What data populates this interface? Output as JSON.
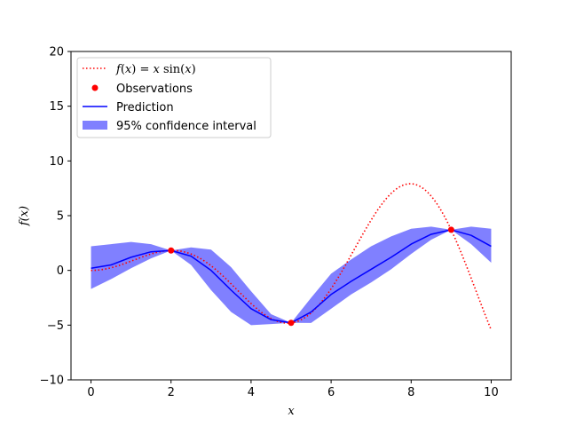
{
  "chart_data": {
    "type": "line",
    "xlabel": "x",
    "ylabel": "f(x)",
    "xlim": [
      -0.5,
      10.5
    ],
    "ylim": [
      -10,
      20
    ],
    "x_ticks": [
      0,
      2,
      4,
      6,
      8,
      10
    ],
    "y_ticks": [
      -10,
      -5,
      0,
      5,
      10,
      15,
      20
    ],
    "grid": false,
    "legend_position": "upper-left",
    "colors": {
      "true_function": "#ff0000",
      "observations": "#ff0000",
      "prediction": "#0000ff",
      "confidence": "#8080ff"
    },
    "legend": [
      {
        "label": "f(x) = x sin(x)",
        "kind": "dotted-line",
        "color_key": "true_function"
      },
      {
        "label": "Observations",
        "kind": "marker",
        "color_key": "observations"
      },
      {
        "label": "Prediction",
        "kind": "solid-line",
        "color_key": "prediction"
      },
      {
        "label": "95% confidence interval",
        "kind": "patch",
        "color_key": "confidence"
      }
    ],
    "observations": [
      {
        "x": 2,
        "y": 1.82
      },
      {
        "x": 5,
        "y": -4.79
      },
      {
        "x": 9,
        "y": 3.71
      }
    ],
    "true_function": {
      "expression": "x*sin(x)",
      "x_range": [
        0,
        10
      ]
    },
    "prediction": {
      "x": [
        0,
        0.5,
        1,
        1.5,
        2,
        2.5,
        3,
        3.5,
        4,
        4.5,
        5,
        5.5,
        6,
        6.5,
        7,
        7.5,
        8,
        8.5,
        9,
        9.5,
        10
      ],
      "y": [
        0.2,
        0.5,
        1.2,
        1.7,
        1.82,
        1.3,
        0.0,
        -1.8,
        -3.5,
        -4.5,
        -4.79,
        -3.8,
        -2.2,
        -1.0,
        0.1,
        1.2,
        2.4,
        3.3,
        3.71,
        3.2,
        2.2
      ]
    },
    "confidence_interval": {
      "x": [
        0,
        0.5,
        1,
        1.5,
        2,
        2.5,
        3,
        3.5,
        4,
        4.5,
        5,
        5.5,
        6,
        6.5,
        7,
        7.5,
        8,
        8.5,
        9,
        9.5,
        10
      ],
      "lower": [
        -1.7,
        -0.8,
        0.2,
        1.1,
        1.82,
        0.5,
        -1.8,
        -3.8,
        -5.0,
        -4.9,
        -4.79,
        -4.8,
        -3.5,
        -2.2,
        -1.1,
        0.1,
        1.5,
        2.8,
        3.71,
        2.4,
        0.7
      ],
      "upper": [
        2.2,
        2.4,
        2.6,
        2.4,
        1.82,
        2.1,
        1.9,
        0.3,
        -1.9,
        -4.0,
        -4.79,
        -2.5,
        -0.3,
        1.0,
        2.2,
        3.1,
        3.8,
        4.0,
        3.71,
        4.0,
        3.8
      ]
    },
    "legend_math_label": {
      "lhs": "f",
      "arg": "x",
      "rhs_var": "x",
      "func": "sin"
    }
  }
}
